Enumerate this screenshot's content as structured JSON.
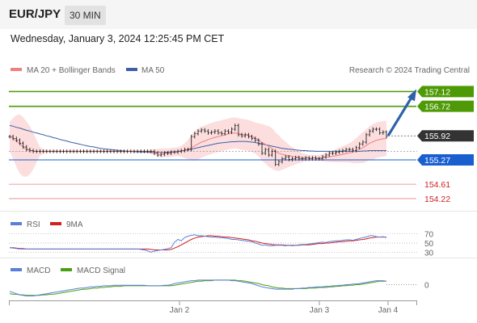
{
  "header": {
    "pair": "EUR/JPY",
    "timeframe": "30 MIN"
  },
  "datetime": "Wednesday, January 3, 2024 12:25:45 PM CET",
  "legend_price": {
    "ma20": "MA 20 + Bollinger Bands",
    "ma50": "MA 50"
  },
  "credit": "Research © 2024 Trading Central",
  "legend_rsi": {
    "rsi": "RSI",
    "ma": "9MA"
  },
  "legend_macd": {
    "macd": "MACD",
    "signal": "MACD Signal"
  },
  "colors": {
    "resistance": "#4e9a06",
    "support": "#1a5fd0",
    "target": "#cc2222",
    "current": "#333333",
    "ma20": "#f08080",
    "ma50": "#3e5fa8",
    "bands": "#fbd3d3",
    "rsi": "#5a7fd8",
    "rsi_ma": "#d02020",
    "macd": "#5a7fd8",
    "macd_signal": "#4aa014",
    "arrow": "#2e62a8"
  },
  "chart_data": [
    {
      "type": "line",
      "panel": "price",
      "x_ticks": [
        "Jan 2",
        "Jan 3",
        "Jan 4"
      ],
      "y_unit_label": "",
      "ylim": [
        154.0,
        157.5
      ],
      "levels": [
        {
          "name": "resistance-2",
          "value": 157.12,
          "label": "157.12",
          "kind": "resistance"
        },
        {
          "name": "resistance-1",
          "value": 156.72,
          "label": "156.72",
          "kind": "resistance"
        },
        {
          "name": "current-price",
          "value": 155.92,
          "label": "155.92",
          "kind": "current"
        },
        {
          "name": "support-1",
          "value": 155.27,
          "label": "155.27",
          "kind": "support"
        },
        {
          "name": "target-1",
          "value": 154.61,
          "label": "154.61",
          "kind": "target"
        },
        {
          "name": "target-2",
          "value": 154.22,
          "label": "154.22",
          "kind": "target"
        }
      ],
      "reference_level": 155.5,
      "price": [
        155.9,
        155.85,
        155.8,
        155.72,
        155.62,
        155.55,
        155.52,
        155.5,
        155.5,
        155.5,
        155.5,
        155.5,
        155.5,
        155.5,
        155.5,
        155.5,
        155.5,
        155.5,
        155.5,
        155.5,
        155.5,
        155.5,
        155.5,
        155.5,
        155.5,
        155.5,
        155.5,
        155.5,
        155.5,
        155.5,
        155.5,
        155.5,
        155.5,
        155.5,
        155.5,
        155.5,
        155.5,
        155.5,
        155.5,
        155.5,
        155.5,
        155.5,
        155.5,
        155.45,
        155.4,
        155.42,
        155.45,
        155.45,
        155.48,
        155.48,
        155.5,
        155.52,
        155.55,
        155.55,
        155.9,
        155.98,
        156.05,
        156.08,
        156.05,
        156.0,
        156.02,
        156.05,
        156.0,
        155.98,
        156.05,
        156.02,
        156.1,
        156.2,
        155.95,
        155.92,
        155.95,
        155.9,
        155.85,
        155.8,
        155.7,
        155.45,
        155.55,
        155.4,
        155.5,
        155.15,
        155.22,
        155.3,
        155.35,
        155.28,
        155.3,
        155.33,
        155.3,
        155.3,
        155.32,
        155.3,
        155.32,
        155.3,
        155.3,
        155.35,
        155.4,
        155.45,
        155.45,
        155.48,
        155.5,
        155.52,
        155.55,
        155.55,
        155.52,
        155.6,
        155.7,
        155.75,
        155.95,
        156.05,
        156.1,
        156.1,
        156.0,
        156.02,
        155.9
      ],
      "ma20": [
        155.9,
        155.85,
        155.78,
        155.7,
        155.62,
        155.56,
        155.53,
        155.51,
        155.5,
        155.5,
        155.5,
        155.5,
        155.5,
        155.5,
        155.5,
        155.5,
        155.5,
        155.5,
        155.5,
        155.5,
        155.5,
        155.5,
        155.5,
        155.5,
        155.5,
        155.5,
        155.5,
        155.5,
        155.5,
        155.5,
        155.5,
        155.5,
        155.5,
        155.5,
        155.5,
        155.5,
        155.5,
        155.5,
        155.5,
        155.5,
        155.5,
        155.5,
        155.49,
        155.48,
        155.47,
        155.46,
        155.46,
        155.46,
        155.47,
        155.48,
        155.49,
        155.5,
        155.52,
        155.55,
        155.6,
        155.65,
        155.7,
        155.75,
        155.78,
        155.82,
        155.85,
        155.88,
        155.9,
        155.92,
        155.95,
        155.97,
        155.99,
        156.0,
        155.98,
        155.96,
        155.95,
        155.93,
        155.9,
        155.86,
        155.81,
        155.74,
        155.69,
        155.63,
        155.58,
        155.5,
        155.45,
        155.42,
        155.4,
        155.38,
        155.36,
        155.35,
        155.34,
        155.33,
        155.33,
        155.32,
        155.32,
        155.32,
        155.32,
        155.33,
        155.34,
        155.35,
        155.37,
        155.38,
        155.4,
        155.42,
        155.44,
        155.46,
        155.48,
        155.52,
        155.56,
        155.6,
        155.66,
        155.72,
        155.76,
        155.8,
        155.82,
        155.84,
        155.85
      ],
      "ma50": [
        156.2,
        156.18,
        156.15,
        156.13,
        156.1,
        156.07,
        156.05,
        156.02,
        156.0,
        155.97,
        155.95,
        155.92,
        155.9,
        155.87,
        155.85,
        155.82,
        155.8,
        155.78,
        155.75,
        155.73,
        155.71,
        155.69,
        155.67,
        155.65,
        155.63,
        155.62,
        155.6,
        155.58,
        155.57,
        155.56,
        155.55,
        155.54,
        155.53,
        155.52,
        155.51,
        155.5,
        155.5,
        155.49,
        155.49,
        155.48,
        155.48,
        155.48,
        155.47,
        155.47,
        155.47,
        155.47,
        155.47,
        155.48,
        155.48,
        155.49,
        155.5,
        155.51,
        155.52,
        155.54,
        155.56,
        155.58,
        155.6,
        155.62,
        155.64,
        155.66,
        155.68,
        155.7,
        155.72,
        155.73,
        155.74,
        155.75,
        155.76,
        155.76,
        155.77,
        155.77,
        155.77,
        155.76,
        155.75,
        155.74,
        155.72,
        155.7,
        155.68,
        155.66,
        155.64,
        155.62,
        155.6,
        155.58,
        155.57,
        155.56,
        155.55,
        155.54,
        155.53,
        155.52,
        155.52,
        155.51,
        155.51,
        155.5,
        155.5,
        155.5,
        155.5,
        155.5,
        155.5,
        155.5,
        155.5,
        155.5,
        155.5,
        155.5,
        155.5,
        155.5,
        155.5,
        155.51,
        155.51,
        155.52,
        155.52,
        155.52,
        155.52,
        155.52,
        155.52
      ],
      "band_width": [
        0.4,
        0.55,
        0.7,
        0.8,
        0.8,
        0.75,
        0.65,
        0.5,
        0.3,
        0.12,
        0.06,
        0.04,
        0.03,
        0.03,
        0.03,
        0.03,
        0.03,
        0.03,
        0.03,
        0.03,
        0.03,
        0.03,
        0.03,
        0.03,
        0.03,
        0.03,
        0.03,
        0.03,
        0.03,
        0.03,
        0.03,
        0.03,
        0.03,
        0.03,
        0.03,
        0.03,
        0.03,
        0.03,
        0.03,
        0.03,
        0.03,
        0.04,
        0.06,
        0.08,
        0.1,
        0.12,
        0.12,
        0.12,
        0.12,
        0.12,
        0.12,
        0.15,
        0.2,
        0.26,
        0.35,
        0.4,
        0.42,
        0.42,
        0.42,
        0.42,
        0.42,
        0.42,
        0.42,
        0.42,
        0.42,
        0.42,
        0.42,
        0.42,
        0.42,
        0.42,
        0.42,
        0.42,
        0.42,
        0.42,
        0.45,
        0.5,
        0.52,
        0.55,
        0.55,
        0.52,
        0.48,
        0.42,
        0.36,
        0.3,
        0.25,
        0.2,
        0.16,
        0.12,
        0.1,
        0.08,
        0.08,
        0.08,
        0.08,
        0.1,
        0.12,
        0.14,
        0.16,
        0.18,
        0.2,
        0.22,
        0.24,
        0.26,
        0.3,
        0.34,
        0.38,
        0.42,
        0.44,
        0.46,
        0.48,
        0.48,
        0.48,
        0.48,
        0.48
      ],
      "forecast_arrow": {
        "from": 155.92,
        "to": 157.12
      }
    },
    {
      "type": "line",
      "panel": "rsi",
      "levels": [
        70,
        50,
        30
      ],
      "level_labels": [
        "70",
        "50",
        "30"
      ],
      "ylim": [
        20,
        80
      ],
      "rsi": [
        40,
        39,
        38,
        37,
        37,
        37,
        37,
        37,
        37,
        37,
        37,
        37,
        37,
        37,
        37,
        37,
        37,
        37,
        37,
        37,
        37,
        37,
        37,
        37,
        37,
        37,
        37,
        37,
        37,
        37,
        37,
        37,
        37,
        37,
        37,
        37,
        37,
        37,
        37,
        36,
        35,
        33,
        30,
        32,
        34,
        35,
        36,
        38,
        40,
        52,
        58,
        55,
        62,
        65,
        67,
        68,
        66,
        66,
        65,
        64,
        63,
        63,
        62,
        62,
        61,
        60,
        58,
        58,
        57,
        56,
        55,
        54,
        53,
        50,
        48,
        45,
        46,
        44,
        44,
        45,
        45,
        45,
        44,
        45,
        44,
        45,
        46,
        47,
        47,
        48,
        49,
        50,
        51,
        52,
        51,
        53,
        54,
        55,
        55,
        56,
        57,
        57,
        56,
        58,
        60,
        62,
        63,
        66,
        66,
        64,
        63,
        64,
        62
      ],
      "rsi_ma": [
        40,
        40,
        39,
        38,
        38,
        37,
        37,
        37,
        37,
        37,
        37,
        37,
        37,
        37,
        37,
        37,
        37,
        37,
        37,
        37,
        37,
        37,
        37,
        37,
        37,
        37,
        37,
        37,
        37,
        37,
        37,
        37,
        37,
        37,
        37,
        37,
        37,
        37,
        37,
        37,
        37,
        37,
        36,
        35,
        35,
        35,
        35,
        35,
        36,
        39,
        42,
        46,
        50,
        54,
        58,
        61,
        63,
        64,
        65,
        66,
        66,
        65,
        65,
        64,
        63,
        63,
        62,
        61,
        60,
        59,
        58,
        57,
        55,
        54,
        52,
        50,
        49,
        48,
        47,
        46,
        46,
        46,
        45,
        45,
        45,
        45,
        45,
        46,
        46,
        46,
        47,
        48,
        49,
        49,
        50,
        50,
        51,
        52,
        53,
        53,
        54,
        55,
        55,
        56,
        57,
        58,
        59,
        61,
        62,
        63,
        63,
        63,
        63
      ]
    },
    {
      "type": "line",
      "panel": "macd",
      "zero_label": "0",
      "ylim": [
        -0.25,
        0.15
      ],
      "macd": [
        -0.12,
        -0.14,
        -0.16,
        -0.18,
        -0.19,
        -0.2,
        -0.2,
        -0.2,
        -0.19,
        -0.18,
        -0.17,
        -0.16,
        -0.15,
        -0.14,
        -0.13,
        -0.12,
        -0.11,
        -0.1,
        -0.09,
        -0.08,
        -0.07,
        -0.06,
        -0.06,
        -0.05,
        -0.04,
        -0.04,
        -0.03,
        -0.03,
        -0.02,
        -0.02,
        -0.02,
        -0.01,
        -0.01,
        -0.01,
        -0.01,
        -0.01,
        -0.01,
        -0.01,
        -0.01,
        -0.01,
        -0.01,
        -0.02,
        -0.02,
        -0.02,
        -0.02,
        -0.02,
        -0.01,
        -0.01,
        0.0,
        0.02,
        0.03,
        0.04,
        0.05,
        0.06,
        0.07,
        0.07,
        0.08,
        0.08,
        0.08,
        0.08,
        0.08,
        0.08,
        0.08,
        0.08,
        0.08,
        0.08,
        0.07,
        0.07,
        0.06,
        0.05,
        0.04,
        0.03,
        0.02,
        0.0,
        -0.02,
        -0.04,
        -0.05,
        -0.06,
        -0.07,
        -0.08,
        -0.08,
        -0.08,
        -0.08,
        -0.08,
        -0.08,
        -0.07,
        -0.07,
        -0.06,
        -0.06,
        -0.05,
        -0.05,
        -0.04,
        -0.04,
        -0.04,
        -0.03,
        -0.03,
        -0.02,
        -0.02,
        -0.01,
        -0.01,
        0.0,
        0.0,
        0.01,
        0.01,
        0.02,
        0.03,
        0.04,
        0.05,
        0.06,
        0.07,
        0.07,
        0.07,
        0.06
      ],
      "signal": [
        -0.16,
        -0.17,
        -0.17,
        -0.18,
        -0.18,
        -0.19,
        -0.19,
        -0.19,
        -0.19,
        -0.19,
        -0.18,
        -0.18,
        -0.17,
        -0.17,
        -0.16,
        -0.15,
        -0.14,
        -0.13,
        -0.12,
        -0.11,
        -0.1,
        -0.09,
        -0.08,
        -0.08,
        -0.07,
        -0.06,
        -0.06,
        -0.05,
        -0.05,
        -0.04,
        -0.04,
        -0.03,
        -0.03,
        -0.03,
        -0.02,
        -0.02,
        -0.02,
        -0.02,
        -0.02,
        -0.02,
        -0.02,
        -0.02,
        -0.02,
        -0.02,
        -0.02,
        -0.02,
        -0.02,
        -0.02,
        -0.02,
        -0.01,
        0.0,
        0.01,
        0.02,
        0.03,
        0.04,
        0.05,
        0.06,
        0.06,
        0.07,
        0.07,
        0.07,
        0.08,
        0.08,
        0.08,
        0.08,
        0.08,
        0.08,
        0.08,
        0.07,
        0.07,
        0.06,
        0.05,
        0.04,
        0.03,
        0.02,
        0.0,
        -0.01,
        -0.02,
        -0.04,
        -0.05,
        -0.06,
        -0.06,
        -0.07,
        -0.07,
        -0.07,
        -0.07,
        -0.07,
        -0.07,
        -0.07,
        -0.06,
        -0.06,
        -0.06,
        -0.05,
        -0.05,
        -0.05,
        -0.04,
        -0.04,
        -0.03,
        -0.03,
        -0.02,
        -0.02,
        -0.01,
        -0.01,
        0.0,
        0.0,
        0.01,
        0.02,
        0.03,
        0.04,
        0.05,
        0.06,
        0.06,
        0.06
      ]
    }
  ]
}
